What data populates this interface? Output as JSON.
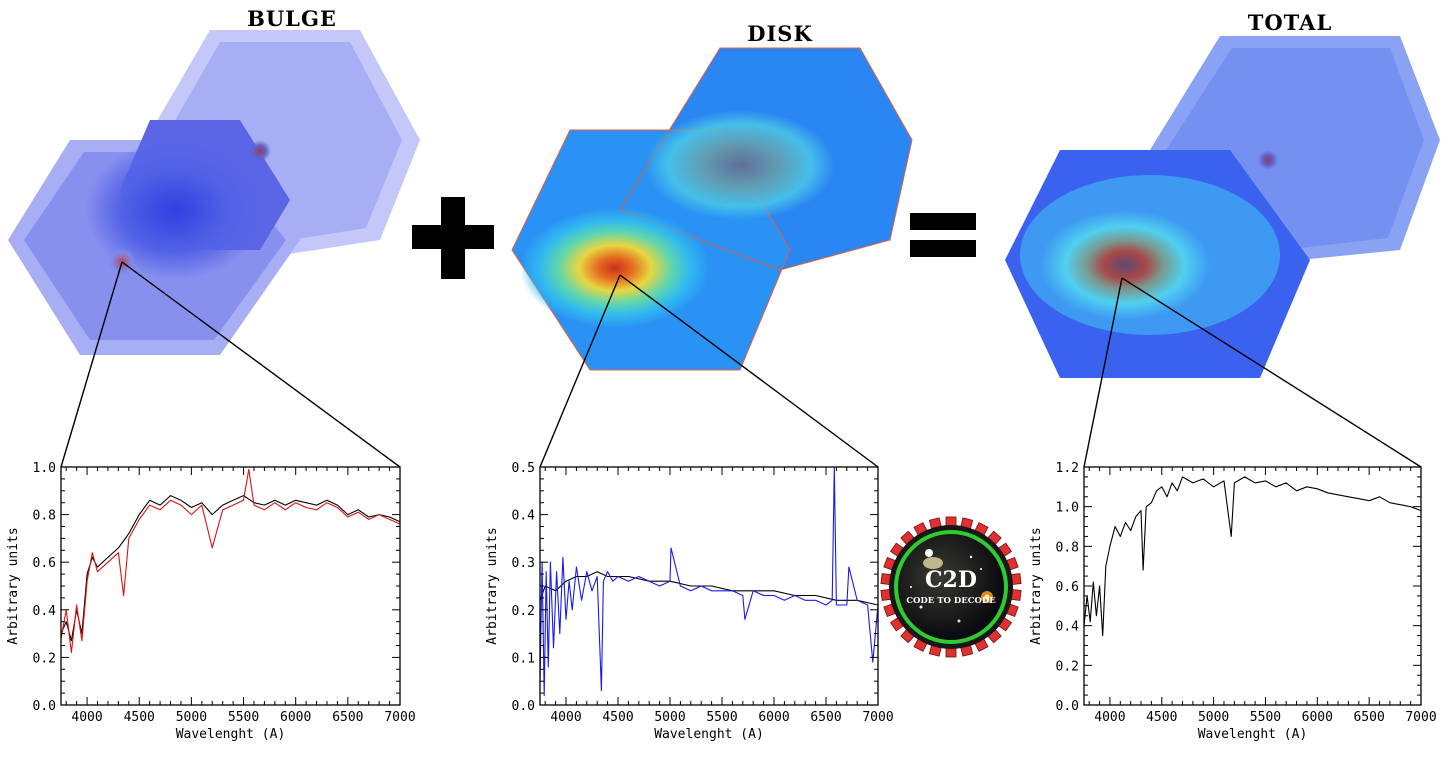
{
  "panels": {
    "bulge": {
      "title": "BULGE"
    },
    "disk": {
      "title": "DISK"
    },
    "total": {
      "title": "TOTAL"
    }
  },
  "operators": {
    "plus": "plus-sign",
    "equals": "equals-sign"
  },
  "logo": {
    "title": "C2D",
    "subtitle": "CODE TO DECODE"
  },
  "chart_data": [
    {
      "type": "line",
      "name": "bulge-spectrum",
      "xlabel": "Wavelenght (A)",
      "ylabel": "Arbitrary units",
      "xlim": [
        3750,
        7000
      ],
      "ylim": [
        0,
        1.0
      ],
      "xticks": [
        4000,
        4500,
        5000,
        5500,
        6000,
        6500,
        7000
      ],
      "yticks": [
        0.0,
        0.2,
        0.4,
        0.6,
        0.8,
        1.0
      ],
      "ytick_labels": [
        "0.0",
        "0.2",
        "0.4",
        "0.6",
        "0.8",
        "1.0"
      ],
      "series": [
        {
          "name": "bulge-model",
          "color": "#000000",
          "x": [
            3750,
            3800,
            3850,
            3900,
            3950,
            4000,
            4050,
            4100,
            4200,
            4300,
            4400,
            4500,
            4600,
            4700,
            4800,
            4900,
            5000,
            5100,
            5200,
            5300,
            5400,
            5500,
            5600,
            5700,
            5800,
            5900,
            6000,
            6100,
            6200,
            6300,
            6400,
            6500,
            6600,
            6700,
            6800,
            6900,
            7000
          ],
          "y": [
            0.3,
            0.35,
            0.27,
            0.4,
            0.3,
            0.55,
            0.62,
            0.58,
            0.62,
            0.66,
            0.72,
            0.8,
            0.86,
            0.84,
            0.88,
            0.86,
            0.83,
            0.85,
            0.8,
            0.84,
            0.86,
            0.88,
            0.85,
            0.84,
            0.86,
            0.84,
            0.86,
            0.85,
            0.84,
            0.86,
            0.84,
            0.8,
            0.82,
            0.79,
            0.8,
            0.79,
            0.77
          ]
        },
        {
          "name": "bulge-observed",
          "color": "#dd1111",
          "x": [
            3750,
            3800,
            3850,
            3900,
            3950,
            4000,
            4050,
            4100,
            4200,
            4300,
            4350,
            4400,
            4500,
            4600,
            4700,
            4800,
            4900,
            5000,
            5100,
            5200,
            5300,
            5400,
            5500,
            5550,
            5600,
            5700,
            5800,
            5900,
            6000,
            6100,
            6200,
            6300,
            6400,
            6500,
            6600,
            6700,
            6800,
            6900,
            7000
          ],
          "y": [
            0.28,
            0.4,
            0.22,
            0.42,
            0.27,
            0.52,
            0.64,
            0.56,
            0.6,
            0.64,
            0.46,
            0.7,
            0.78,
            0.84,
            0.82,
            0.86,
            0.84,
            0.8,
            0.84,
            0.66,
            0.82,
            0.84,
            0.86,
            0.99,
            0.84,
            0.82,
            0.85,
            0.82,
            0.85,
            0.83,
            0.82,
            0.85,
            0.83,
            0.79,
            0.81,
            0.78,
            0.8,
            0.78,
            0.76
          ]
        }
      ]
    },
    {
      "type": "line",
      "name": "disk-spectrum",
      "xlabel": "Wavelenght (A)",
      "ylabel": "Arbitrary units",
      "xlim": [
        3750,
        7000
      ],
      "ylim": [
        0,
        0.5
      ],
      "xticks": [
        4000,
        4500,
        5000,
        5500,
        6000,
        6500,
        7000
      ],
      "yticks": [
        0.0,
        0.1,
        0.2,
        0.3,
        0.4,
        0.5
      ],
      "ytick_labels": [
        "0.0",
        "0.1",
        "0.2",
        "0.3",
        "0.4",
        "0.5"
      ],
      "series": [
        {
          "name": "disk-model",
          "color": "#000000",
          "x": [
            3750,
            3800,
            3900,
            4000,
            4100,
            4200,
            4300,
            4400,
            4500,
            4600,
            4800,
            5000,
            5200,
            5400,
            5600,
            5800,
            6000,
            6200,
            6400,
            6600,
            6800,
            7000
          ],
          "y": [
            0.22,
            0.25,
            0.24,
            0.26,
            0.27,
            0.27,
            0.28,
            0.27,
            0.27,
            0.27,
            0.26,
            0.26,
            0.25,
            0.25,
            0.24,
            0.24,
            0.24,
            0.23,
            0.23,
            0.22,
            0.22,
            0.21
          ]
        },
        {
          "name": "disk-observed",
          "color": "#1a1aee",
          "x": [
            3750,
            3770,
            3790,
            3810,
            3830,
            3850,
            3880,
            3910,
            3940,
            3970,
            4000,
            4030,
            4060,
            4100,
            4150,
            4200,
            4250,
            4300,
            4340,
            4360,
            4400,
            4450,
            4500,
            4600,
            4700,
            4800,
            4900,
            5000,
            5010,
            5100,
            5200,
            5300,
            5400,
            5500,
            5600,
            5700,
            5720,
            5800,
            5900,
            6000,
            6100,
            6200,
            6300,
            6400,
            6500,
            6560,
            6580,
            6600,
            6700,
            6720,
            6800,
            6900,
            6950,
            7000
          ],
          "y": [
            0.05,
            0.3,
            0.02,
            0.28,
            0.08,
            0.3,
            0.12,
            0.28,
            0.15,
            0.31,
            0.18,
            0.26,
            0.2,
            0.29,
            0.22,
            0.28,
            0.24,
            0.27,
            0.03,
            0.26,
            0.28,
            0.26,
            0.27,
            0.26,
            0.27,
            0.26,
            0.25,
            0.26,
            0.33,
            0.25,
            0.24,
            0.25,
            0.24,
            0.24,
            0.24,
            0.23,
            0.18,
            0.24,
            0.23,
            0.23,
            0.22,
            0.23,
            0.22,
            0.22,
            0.21,
            0.22,
            0.5,
            0.21,
            0.21,
            0.29,
            0.22,
            0.21,
            0.09,
            0.21
          ]
        }
      ]
    },
    {
      "type": "line",
      "name": "total-spectrum",
      "xlabel": "Wavelenght (A)",
      "ylabel": "Arbitrary units",
      "xlim": [
        3750,
        7000
      ],
      "ylim": [
        0,
        1.2
      ],
      "xticks": [
        4000,
        4500,
        5000,
        5500,
        6000,
        6500,
        7000
      ],
      "yticks": [
        0.0,
        0.2,
        0.4,
        0.6,
        0.8,
        1.0,
        1.2
      ],
      "ytick_labels": [
        "0.0",
        "0.2",
        "0.4",
        "0.6",
        "0.8",
        "1.0",
        "1.2"
      ],
      "series": [
        {
          "name": "total-observed",
          "color": "#000000",
          "x": [
            3750,
            3780,
            3810,
            3840,
            3870,
            3900,
            3930,
            3960,
            4000,
            4050,
            4100,
            4150,
            4200,
            4250,
            4300,
            4320,
            4350,
            4400,
            4450,
            4500,
            4550,
            4600,
            4650,
            4700,
            4800,
            4900,
            5000,
            5100,
            5170,
            5200,
            5300,
            5400,
            5500,
            5600,
            5700,
            5800,
            5900,
            6000,
            6100,
            6200,
            6300,
            6400,
            6500,
            6600,
            6700,
            6800,
            6900,
            7000
          ],
          "y": [
            0.4,
            0.55,
            0.42,
            0.62,
            0.45,
            0.6,
            0.35,
            0.7,
            0.8,
            0.9,
            0.85,
            0.92,
            0.88,
            0.95,
            0.98,
            0.68,
            1.0,
            1.02,
            1.08,
            1.1,
            1.05,
            1.12,
            1.08,
            1.15,
            1.12,
            1.14,
            1.1,
            1.13,
            0.85,
            1.12,
            1.15,
            1.12,
            1.13,
            1.1,
            1.12,
            1.08,
            1.1,
            1.09,
            1.07,
            1.06,
            1.05,
            1.04,
            1.03,
            1.05,
            1.02,
            1.01,
            1.0,
            0.98
          ]
        }
      ]
    }
  ]
}
